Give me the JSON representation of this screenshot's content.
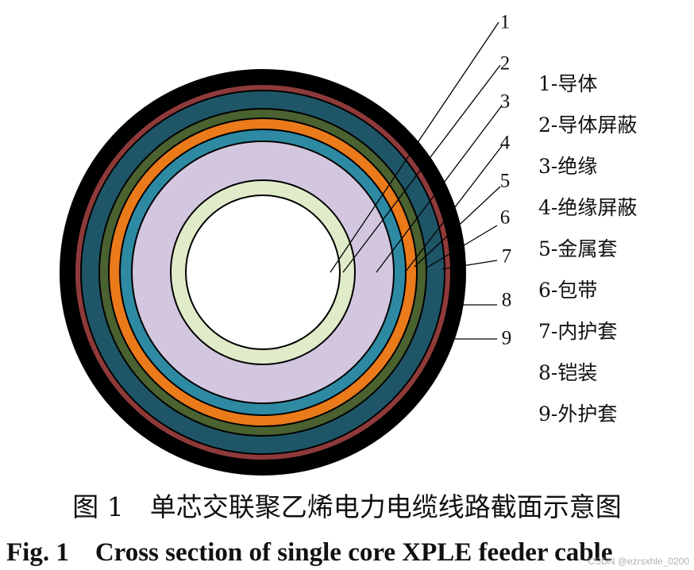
{
  "diagram": {
    "layers": [
      {
        "id": "9",
        "color": "#000000"
      },
      {
        "id": "8",
        "color": "#8f3a3a"
      },
      {
        "id": "7",
        "color": "#1e5668"
      },
      {
        "id": "6",
        "color": "#4a6130"
      },
      {
        "id": "5",
        "color": "#ea7a1a"
      },
      {
        "id": "4",
        "color": "#2e8aa3"
      },
      {
        "id": "3",
        "color": "#d3c7df"
      },
      {
        "id": "2",
        "color": "#e0ebc9"
      },
      {
        "id": "1",
        "color": "#ffffff"
      }
    ],
    "callout_numbers": [
      "1",
      "2",
      "3",
      "4",
      "5",
      "6",
      "7",
      "8",
      "9"
    ]
  },
  "legend": [
    "1-导体",
    "2-导体屏蔽",
    "3-绝缘",
    "4-绝缘屏蔽",
    "5-金属套",
    "6-包带",
    "7-内护套",
    "8-铠装",
    "9-外护套"
  ],
  "caption_cn": "图 1　单芯交联聚乙烯电力电缆线路截面示意图",
  "caption_en": "Fig. 1　Cross section of single core XPLE feeder cable",
  "watermark": "CSDN @ezrsxhle_0200"
}
